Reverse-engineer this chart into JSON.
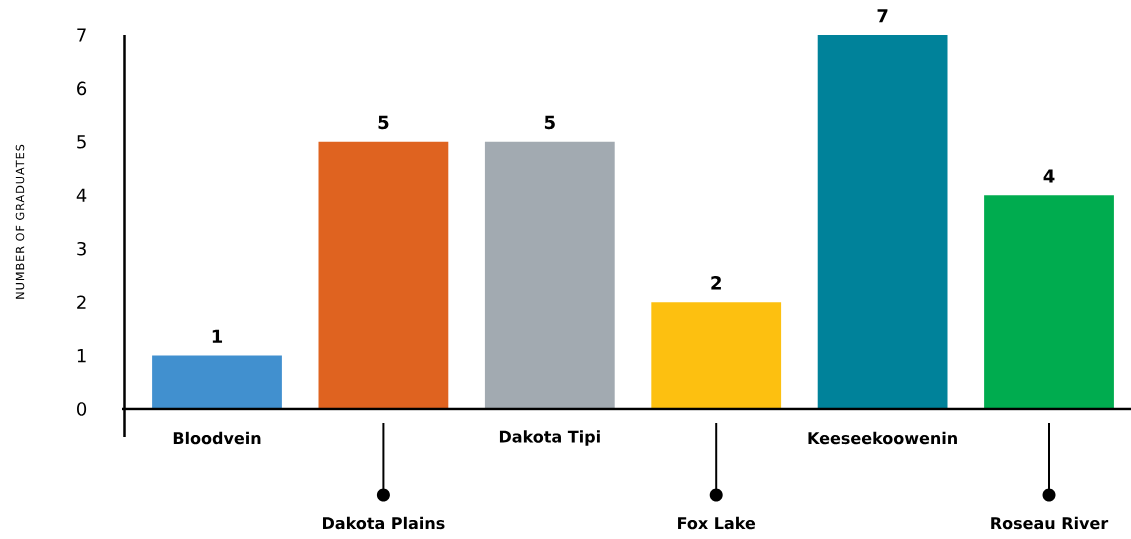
{
  "chart_data": {
    "type": "bar",
    "ylabel": "NUMBER OF GRADUATES",
    "categories": [
      "Bloodvein",
      "Dakota Plains",
      "Dakota Tipi",
      "Fox Lake",
      "Keeseekoowenin",
      "Roseau River"
    ],
    "values": [
      1,
      5,
      5,
      2,
      7,
      4
    ],
    "colors": [
      "#4190cf",
      "#df6320",
      "#a2aab1",
      "#fdc010",
      "#00829a",
      "#00ac4f"
    ],
    "ylim": [
      0,
      7
    ],
    "yticks": [
      0,
      1,
      2,
      3,
      4,
      5,
      6,
      7
    ],
    "data_labels": true
  }
}
